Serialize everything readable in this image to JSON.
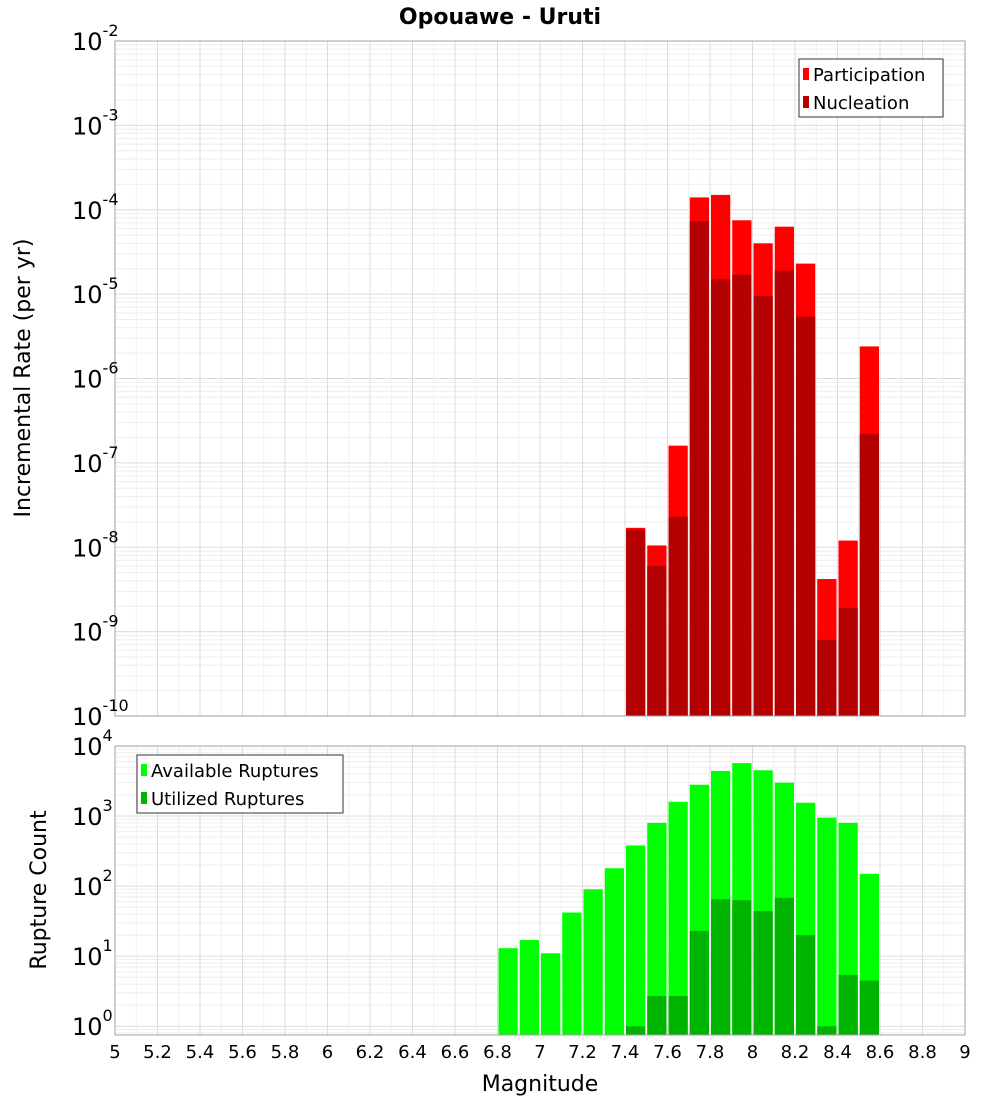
{
  "chart_data": {
    "title": "Opouawe - Uruti",
    "xlabel": "Magnitude",
    "xlim": [
      5,
      9
    ],
    "x_ticks": [
      "5",
      "5.2",
      "5.4",
      "5.6",
      "5.8",
      "6",
      "6.2",
      "6.4",
      "6.6",
      "6.8",
      "7",
      "7.2",
      "7.4",
      "7.6",
      "7.8",
      "8",
      "8.2",
      "8.4",
      "8.6",
      "8.8",
      "9"
    ],
    "bin_width": 0.1,
    "grid": true,
    "panels": [
      {
        "type": "bar",
        "ylabel": "Incremental Rate (per yr)",
        "yscale": "log",
        "ylim": [
          1e-10,
          0.01
        ],
        "y_ticks": [
          {
            "base": "10",
            "exp": "-10"
          },
          {
            "base": "10",
            "exp": "-9"
          },
          {
            "base": "10",
            "exp": "-8"
          },
          {
            "base": "10",
            "exp": "-7"
          },
          {
            "base": "10",
            "exp": "-6"
          },
          {
            "base": "10",
            "exp": "-5"
          },
          {
            "base": "10",
            "exp": "-4"
          },
          {
            "base": "10",
            "exp": "-3"
          },
          {
            "base": "10",
            "exp": "-2"
          }
        ],
        "legend_position": "top-right",
        "x": [
          7.45,
          7.55,
          7.65,
          7.75,
          7.85,
          7.95,
          8.05,
          8.15,
          8.25,
          8.35,
          8.45,
          8.55
        ],
        "series": [
          {
            "name": "Participation",
            "color": "#ff0000",
            "values": [
              1.7e-08,
              1.05e-08,
              1.6e-07,
              0.00014,
              0.00015,
              7.5e-05,
              4e-05,
              6.3e-05,
              2.3e-05,
              4.2e-09,
              1.2e-08,
              2.4e-06
            ]
          },
          {
            "name": "Nucleation",
            "color": "#b30000",
            "values": [
              1.6e-08,
              6e-09,
              2.3e-08,
              7.3e-05,
              1.5e-05,
              1.7e-05,
              9.5e-06,
              1.9e-05,
              5.4e-06,
              8e-10,
              1.9e-09,
              2.2e-07
            ]
          }
        ]
      },
      {
        "type": "bar",
        "ylabel": "Rupture Count",
        "yscale": "log",
        "ylim": [
          0.75,
          10000
        ],
        "y_ticks": [
          {
            "base": "10",
            "exp": "0"
          },
          {
            "base": "10",
            "exp": "1"
          },
          {
            "base": "10",
            "exp": "2"
          },
          {
            "base": "10",
            "exp": "3"
          },
          {
            "base": "10",
            "exp": "4"
          }
        ],
        "legend_position": "top-left",
        "x": [
          6.85,
          6.95,
          7.05,
          7.15,
          7.25,
          7.35,
          7.45,
          7.55,
          7.65,
          7.75,
          7.85,
          7.95,
          8.05,
          8.15,
          8.25,
          8.35,
          8.45,
          8.55
        ],
        "series": [
          {
            "name": "Available Ruptures",
            "color": "#00ff00",
            "values": [
              13,
              17,
              11,
              42,
              90,
              180,
              380,
              800,
              1600,
              2800,
              4400,
              5700,
              4500,
              3000,
              1550,
              950,
              800,
              150
            ]
          },
          {
            "name": "Utilized Ruptures",
            "color": "#00b300",
            "values": [
              0,
              0,
              0,
              0,
              0,
              0,
              1,
              2.7,
              2.7,
              23,
              65,
              63,
              44,
              68,
              20,
              1,
              5.4,
              4.5
            ]
          }
        ]
      }
    ]
  }
}
